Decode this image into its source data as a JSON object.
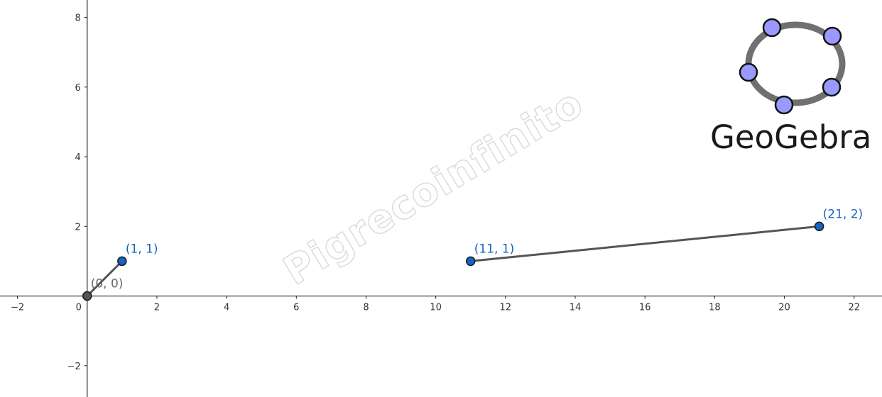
{
  "app": {
    "logo_text": "GeoGebra",
    "logo_icon": "geogebra-ellipse-logo"
  },
  "watermark": {
    "text": "Pigrecoinfinito"
  },
  "colors": {
    "axis": "#222222",
    "segment": "#555555",
    "point_blue": "#1565c0",
    "point_dark": "#555555",
    "label_blue": "#1565c0",
    "label_gray": "#666666",
    "logo_ring": "#707070",
    "logo_dot": "#9999ff"
  },
  "chart_data": {
    "type": "scatter",
    "xlim": [
      -2.5,
      22.8
    ],
    "ylim": [
      -2.9,
      8.5
    ],
    "grid": false,
    "x_ticks": [
      -2,
      0,
      2,
      4,
      6,
      8,
      10,
      12,
      14,
      16,
      18,
      20,
      22
    ],
    "y_ticks": [
      -2,
      2,
      4,
      6,
      8
    ],
    "x_tick_labels": [
      "−2",
      "0",
      "2",
      "4",
      "6",
      "8",
      "10",
      "12",
      "14",
      "16",
      "18",
      "20",
      "22"
    ],
    "y_tick_labels": [
      "−2",
      "2",
      "4",
      "6",
      "8"
    ],
    "points": [
      {
        "label": "(0, 0)",
        "x": 0,
        "y": 0,
        "style": "dark"
      },
      {
        "label": "(1, 1)",
        "x": 1,
        "y": 1,
        "style": "blue"
      },
      {
        "label": "(11, 1)",
        "x": 11,
        "y": 1,
        "style": "blue"
      },
      {
        "label": "(21, 2)",
        "x": 21,
        "y": 2,
        "style": "blue"
      }
    ],
    "segments": [
      {
        "from": [
          0,
          0
        ],
        "to": [
          1,
          1
        ]
      },
      {
        "from": [
          11,
          1
        ],
        "to": [
          21,
          2
        ]
      }
    ]
  }
}
